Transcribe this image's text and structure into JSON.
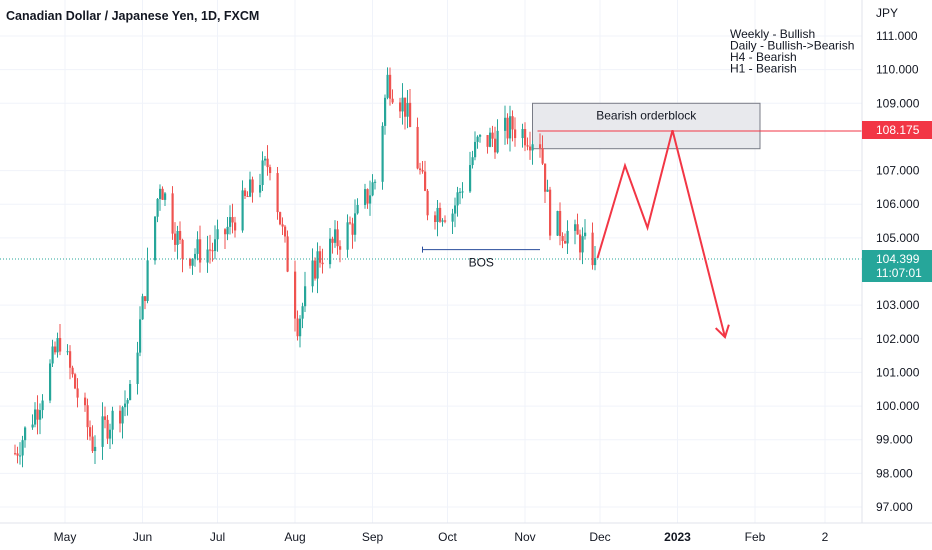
{
  "chart_title": "Canadian Dollar / Japanese Yen, 1D, FXCM",
  "currency_label": "JPY",
  "notes": [
    "Weekly - Bullish",
    "Daily - Bullish->Bearish",
    "H4 - Bearish",
    "H1 - Bearish"
  ],
  "annotations": {
    "orderblock_label": "Bearish orderblock",
    "bos_label": "BOS"
  },
  "price_tags": {
    "orderblock_level": "108.175",
    "last_price": "104.399",
    "countdown": "11:07:01"
  },
  "colors": {
    "bull": "#26a69a",
    "bear": "#ef5350",
    "projection": "#f23645",
    "bos_line": "#2a4d9c",
    "orderblock_fill": "#e6e7eb",
    "last_price_tag": "#26a69a",
    "level_tag": "#f23645"
  },
  "chart_data": {
    "type": "candlestick",
    "title": "Canadian Dollar / Japanese Yen, 1D, FXCM",
    "ylabel": "JPY",
    "ylim": [
      96.6,
      112.1
    ],
    "y_ticks": [
      "111.000",
      "110.000",
      "109.000",
      "107.000",
      "106.000",
      "105.000",
      "103.000",
      "102.000",
      "101.000",
      "100.000",
      "99.000",
      "98.000",
      "97.000"
    ],
    "x_ticks": [
      "May",
      "Jun",
      "Jul",
      "Aug",
      "Sep",
      "Oct",
      "Nov",
      "Dec",
      "2023",
      "Feb",
      "2"
    ],
    "grid": true,
    "last_price": 104.399,
    "orderblock": {
      "from_date": "2022-11-04",
      "to_date": "2023-02-03",
      "high": 109.0,
      "low": 107.65
    },
    "orderblock_level": 108.175,
    "bos": {
      "from_date": "2022-09-21",
      "to_date": "2022-11-07",
      "price": 104.65
    },
    "projection": [
      {
        "date": "2022-11-30",
        "price": 104.4
      },
      {
        "date": "2022-12-11",
        "price": 107.15
      },
      {
        "date": "2022-12-20",
        "price": 105.3
      },
      {
        "date": "2022-12-30",
        "price": 108.2
      },
      {
        "date": "2023-01-20",
        "price": 102.05
      }
    ],
    "waypoints": [
      {
        "date": "2022-04-11",
        "price": 98.6
      },
      {
        "date": "2022-04-20",
        "price": 100.0
      },
      {
        "date": "2022-04-29",
        "price": 102.0
      },
      {
        "date": "2022-05-12",
        "price": 98.9
      },
      {
        "date": "2022-05-27",
        "price": 100.3
      },
      {
        "date": "2022-06-08",
        "price": 106.7
      },
      {
        "date": "2022-06-17",
        "price": 104.5
      },
      {
        "date": "2022-06-30",
        "price": 104.7
      },
      {
        "date": "2022-07-13",
        "price": 106.2
      },
      {
        "date": "2022-07-22",
        "price": 107.3
      },
      {
        "date": "2022-08-02",
        "price": 102.5
      },
      {
        "date": "2022-08-10",
        "price": 104.4
      },
      {
        "date": "2022-08-18",
        "price": 104.9
      },
      {
        "date": "2022-08-25",
        "price": 105.5
      },
      {
        "date": "2022-09-02",
        "price": 106.7
      },
      {
        "date": "2022-09-07",
        "price": 109.7
      },
      {
        "date": "2022-09-14",
        "price": 108.9
      },
      {
        "date": "2022-09-23",
        "price": 105.9
      },
      {
        "date": "2022-10-03",
        "price": 105.8
      },
      {
        "date": "2022-10-13",
        "price": 107.8
      },
      {
        "date": "2022-10-21",
        "price": 108.0
      },
      {
        "date": "2022-10-27",
        "price": 108.3
      },
      {
        "date": "2022-11-07",
        "price": 107.9
      },
      {
        "date": "2022-11-11",
        "price": 105.5
      },
      {
        "date": "2022-11-23",
        "price": 104.9
      },
      {
        "date": "2022-11-29",
        "price": 104.399
      }
    ]
  }
}
